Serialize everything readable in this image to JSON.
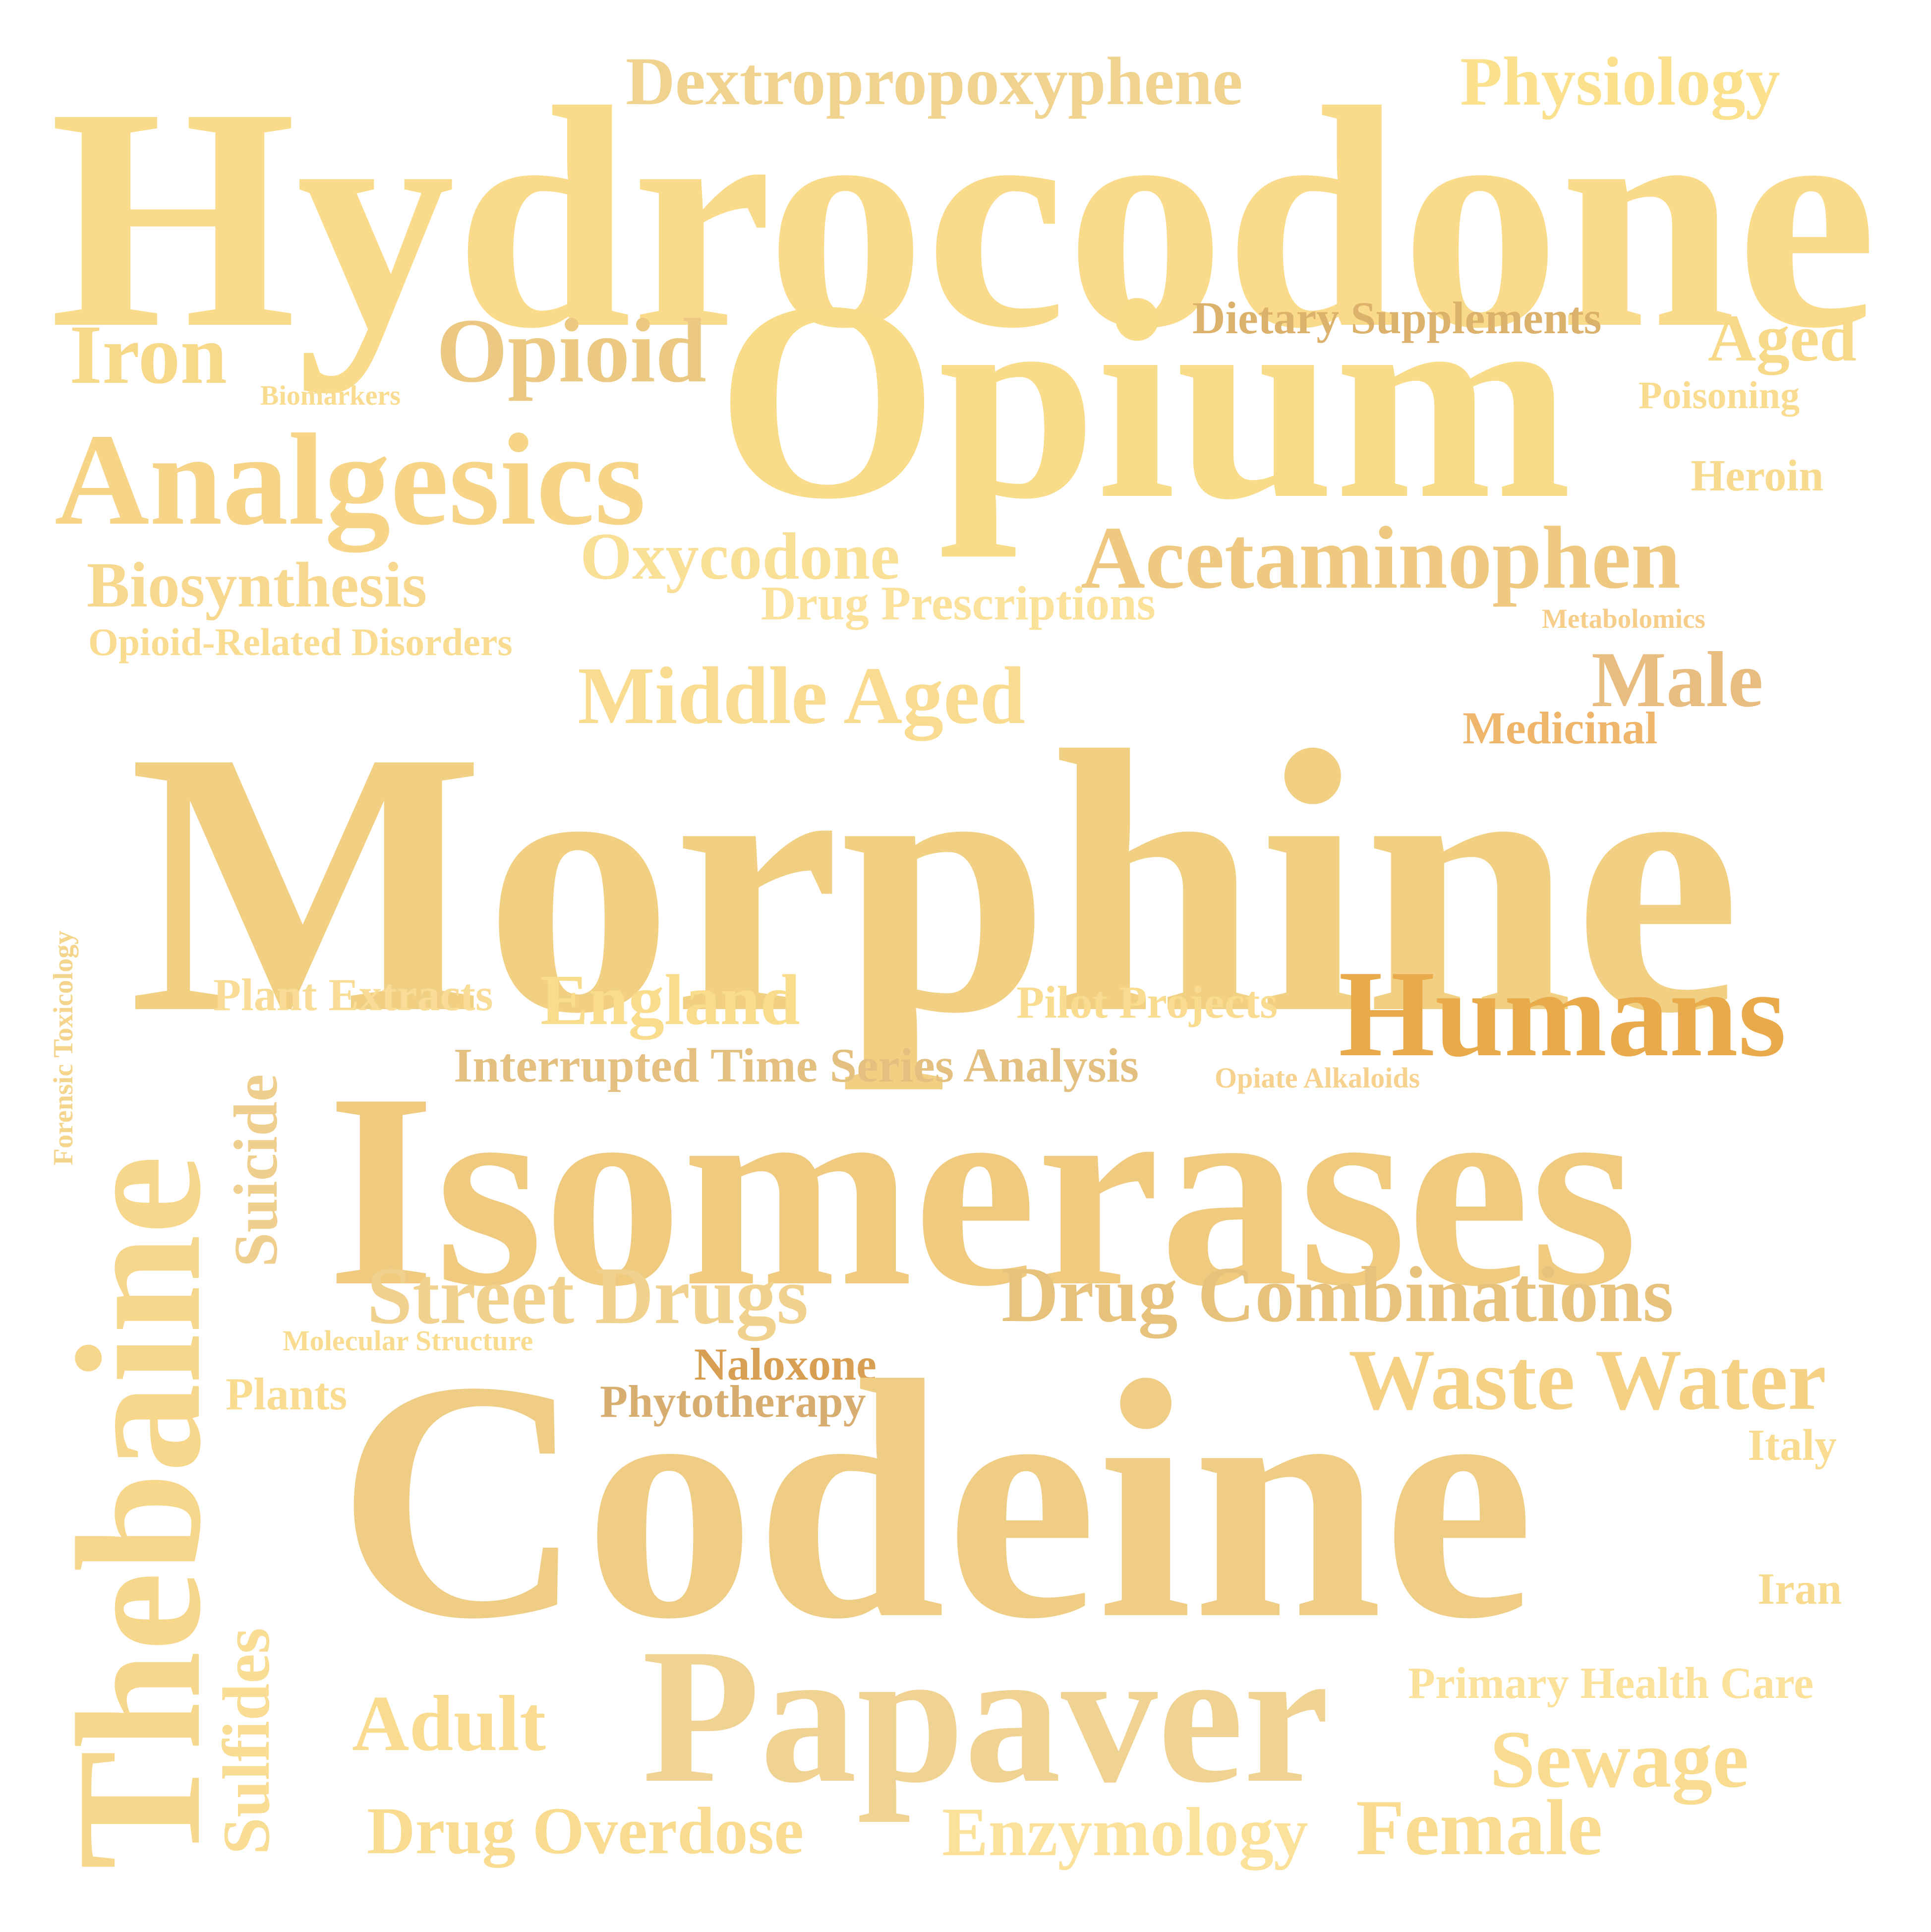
{
  "words": [
    {
      "id": "hydrocodone",
      "text": "Hydrocodone",
      "color": "#f9db8b"
    },
    {
      "id": "dextropropoxyphene",
      "text": "Dextropropoxyphene",
      "color": "#f0d38e"
    },
    {
      "id": "physiology",
      "text": "Physiology",
      "color": "#fbe18d"
    },
    {
      "id": "iron",
      "text": "Iron",
      "color": "#f8d98a"
    },
    {
      "id": "opioid",
      "text": "Opioid",
      "color": "#ecc983"
    },
    {
      "id": "opium",
      "text": "Opium",
      "color": "#f9dc8a"
    },
    {
      "id": "dietary-supplements",
      "text": "Dietary Supplements",
      "color": "#dcb16b"
    },
    {
      "id": "aged",
      "text": "Aged",
      "color": "#f8d98a"
    },
    {
      "id": "biomarkers",
      "text": "Biomarkers",
      "color": "#fadc90"
    },
    {
      "id": "poisoning",
      "text": "Poisoning",
      "color": "#fadc90"
    },
    {
      "id": "analgesics",
      "text": "Analgesics",
      "color": "#f6d488"
    },
    {
      "id": "heroin",
      "text": "Heroin",
      "color": "#f9db90"
    },
    {
      "id": "oxycodone",
      "text": "Oxycodone",
      "color": "#fadf96"
    },
    {
      "id": "acetaminophen",
      "text": "Acetaminophen",
      "color": "#efc980"
    },
    {
      "id": "biosynthesis",
      "text": "Biosynthesis",
      "color": "#f7d88e"
    },
    {
      "id": "drug-prescriptions",
      "text": "Drug Prescriptions",
      "color": "#fbe19a"
    },
    {
      "id": "metabolomics",
      "text": "Metabolomics",
      "color": "#f7cd8a"
    },
    {
      "id": "opioid-related-disorders",
      "text": "Opioid-Related Disorders",
      "color": "#fadc90"
    },
    {
      "id": "middle-aged",
      "text": "Middle Aged",
      "color": "#fadc90"
    },
    {
      "id": "male",
      "text": "Male",
      "color": "#e9bc80"
    },
    {
      "id": "medicinal",
      "text": "Medicinal",
      "color": "#efb56a"
    },
    {
      "id": "morphine",
      "text": "Morphine",
      "color": "#f2d083"
    },
    {
      "id": "forensic-toxicology",
      "text": "Forensic Toxicology",
      "color": "#f5d48c"
    },
    {
      "id": "plant-extracts",
      "text": "Plant Extracts",
      "color": "#f9dc95"
    },
    {
      "id": "england",
      "text": "England",
      "color": "#f9dc8c"
    },
    {
      "id": "pilot-projects",
      "text": "Pilot Projects",
      "color": "#fadc90"
    },
    {
      "id": "humans",
      "text": "Humans",
      "color": "#e9aa4c"
    },
    {
      "id": "thebaine",
      "text": "Thebaine",
      "color": "#f7d78b"
    },
    {
      "id": "suicide",
      "text": "Suicide",
      "color": "#f0cf8e"
    },
    {
      "id": "interrupted-time-series-analysis",
      "text": "Interrupted Time Series Analysis",
      "color": "#e3c080"
    },
    {
      "id": "opiate-alkaloids",
      "text": "Opiate Alkaloids",
      "color": "#f7d28f"
    },
    {
      "id": "isomerases",
      "text": "Isomerases",
      "color": "#efca7f"
    },
    {
      "id": "street-drugs",
      "text": "Street Drugs",
      "color": "#f0d28e"
    },
    {
      "id": "drug-combinations",
      "text": "Drug Combinations",
      "color": "#e7c27c"
    },
    {
      "id": "molecular-structure",
      "text": "Molecular Structure",
      "color": "#fadc90"
    },
    {
      "id": "waste-water",
      "text": "Waste Water",
      "color": "#f4d185"
    },
    {
      "id": "naloxone",
      "text": "Naloxone",
      "color": "#d89e52"
    },
    {
      "id": "plants",
      "text": "Plants",
      "color": "#f9dc90"
    },
    {
      "id": "phytotherapy",
      "text": "Phytotherapy",
      "color": "#d8ad70"
    },
    {
      "id": "codeine",
      "text": "Codeine",
      "color": "#f0cd85"
    },
    {
      "id": "italy",
      "text": "Italy",
      "color": "#fadc90"
    },
    {
      "id": "iran",
      "text": "Iran",
      "color": "#f9db90"
    },
    {
      "id": "sulfides",
      "text": "Sulfides",
      "color": "#f9dd95"
    },
    {
      "id": "primary-health-care",
      "text": "Primary Health Care",
      "color": "#fbe19a"
    },
    {
      "id": "adult",
      "text": "Adult",
      "color": "#fadc90"
    },
    {
      "id": "papaver",
      "text": "Papaver",
      "color": "#f0d393"
    },
    {
      "id": "sewage",
      "text": "Sewage",
      "color": "#fadc90"
    },
    {
      "id": "drug-overdose",
      "text": "Drug Overdose",
      "color": "#fadc90"
    },
    {
      "id": "enzymology",
      "text": "Enzymology",
      "color": "#fbe19a"
    },
    {
      "id": "female",
      "text": "Female",
      "color": "#fadc90"
    }
  ]
}
